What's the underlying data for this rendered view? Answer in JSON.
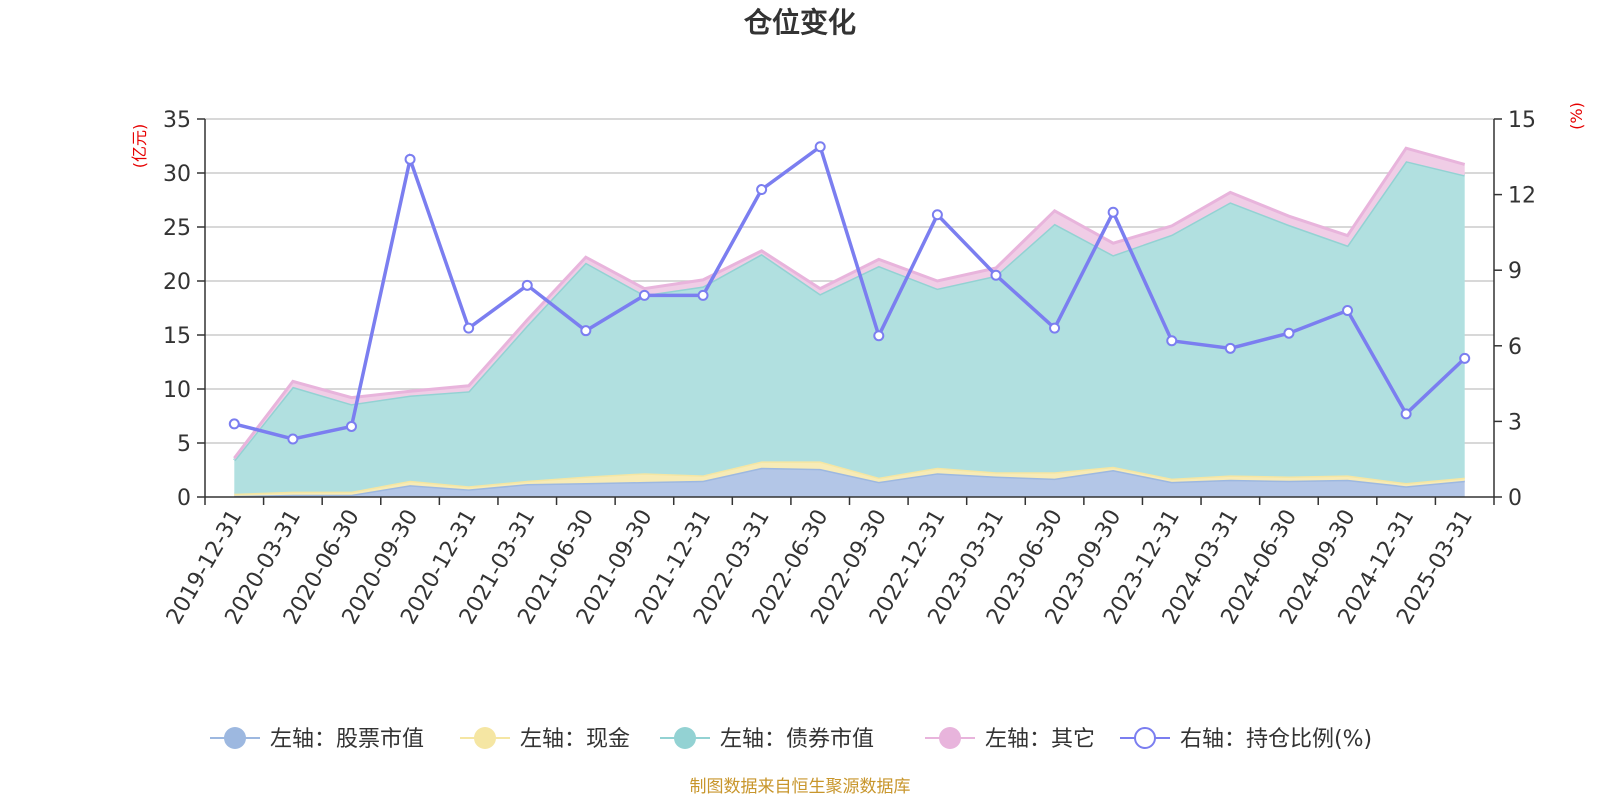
{
  "chart_data": {
    "type": "area",
    "title": "仓位变化",
    "left_unit": "(亿元)",
    "right_unit": "(%)",
    "left_ylim": [
      0,
      35
    ],
    "left_ticks": [
      "0",
      "5",
      "10",
      "15",
      "20",
      "25",
      "30",
      "35"
    ],
    "right_ylim": [
      0,
      15
    ],
    "right_ticks": [
      "0",
      "3",
      "6",
      "9",
      "12",
      "15"
    ],
    "categories": [
      "2019-12-31",
      "2020-03-31",
      "2020-06-30",
      "2020-09-30",
      "2020-12-31",
      "2021-03-31",
      "2021-06-30",
      "2021-09-30",
      "2021-12-31",
      "2022-03-31",
      "2022-06-30",
      "2022-09-30",
      "2022-12-31",
      "2023-03-31",
      "2023-06-30",
      "2023-09-30",
      "2023-12-31",
      "2024-03-31",
      "2024-06-30",
      "2024-09-30",
      "2024-12-31",
      "2025-03-31"
    ],
    "series": [
      {
        "name": "左轴：股票市值",
        "axis": "left",
        "kind": "stack",
        "color": "#9db8e0",
        "fill": "#b3c6e7",
        "values": [
          0.1,
          0.2,
          0.2,
          1.1,
          0.7,
          1.2,
          1.3,
          1.4,
          1.5,
          2.7,
          2.6,
          1.4,
          2.2,
          1.9,
          1.7,
          2.5,
          1.4,
          1.6,
          1.5,
          1.6,
          1.0,
          1.5
        ]
      },
      {
        "name": "左轴：现金",
        "axis": "left",
        "kind": "stack",
        "color": "#f5e6a3",
        "fill": "#f7ebb6",
        "values": [
          0.2,
          0.3,
          0.3,
          0.4,
          0.3,
          0.3,
          0.6,
          0.8,
          0.5,
          0.6,
          0.7,
          0.4,
          0.5,
          0.4,
          0.6,
          0.3,
          0.3,
          0.4,
          0.4,
          0.4,
          0.3,
          0.3
        ]
      },
      {
        "name": "左轴：债券市值",
        "axis": "left",
        "kind": "stack",
        "color": "#93d2d3",
        "fill": "#b1e0e0",
        "values": [
          3.1,
          9.7,
          8.1,
          7.9,
          8.8,
          14.4,
          19.8,
          16.5,
          17.5,
          19.2,
          15.5,
          19.6,
          16.6,
          18.2,
          23.0,
          19.6,
          22.6,
          25.3,
          23.3,
          21.3,
          29.8,
          28.0
        ]
      },
      {
        "name": "左轴：其它",
        "axis": "left",
        "kind": "stack",
        "color": "#e8b4dc",
        "fill": "#f0cde6",
        "values": [
          0.2,
          0.5,
          0.6,
          0.4,
          0.5,
          0.5,
          0.5,
          0.6,
          0.6,
          0.3,
          0.5,
          0.6,
          0.7,
          0.7,
          1.2,
          1.1,
          0.8,
          0.9,
          0.8,
          0.9,
          1.2,
          1.0
        ]
      },
      {
        "name": "右轴：持仓比例(%)",
        "axis": "right",
        "kind": "line",
        "color": "#7b7ef0",
        "values": [
          2.9,
          2.3,
          2.8,
          13.4,
          6.7,
          8.4,
          6.6,
          8.0,
          8.0,
          12.2,
          13.9,
          6.4,
          11.2,
          8.8,
          6.7,
          11.3,
          6.2,
          5.9,
          6.5,
          7.4,
          3.3,
          5.5
        ]
      }
    ],
    "grid": true,
    "legend_position": "bottom",
    "source": "制图数据来自恒生聚源数据库"
  }
}
